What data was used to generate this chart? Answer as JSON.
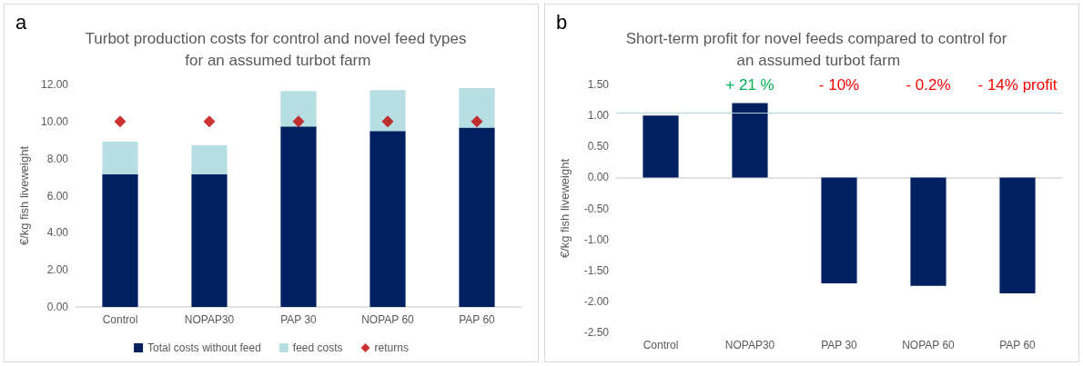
{
  "chart_data": [
    {
      "type": "bar",
      "title": "Turbot production costs for control and novel feed types for an assumed turbot farm",
      "ylabel": "€/kg fish liveweight",
      "annotations": [
        "a"
      ],
      "categories": [
        "Control",
        "NOPAP30",
        "PAP 30",
        "NOPAP 60",
        "PAP 60"
      ],
      "stacked": true,
      "series": [
        {
          "name": "Total costs without feed",
          "color": "#002060",
          "values": [
            7.16,
            7.16,
            9.73,
            9.49,
            9.67
          ]
        },
        {
          "name": "feed costs",
          "color": "#b7dee2",
          "values": [
            1.76,
            1.57,
            1.92,
            2.2,
            2.13
          ]
        },
        {
          "name": "returns",
          "type": "scatter",
          "marker": "diamond",
          "color": "#c00000",
          "values": [
            10,
            10,
            10,
            10,
            10
          ]
        }
      ],
      "ylim": [
        0,
        12
      ],
      "yticks": [
        {
          "value": 0,
          "label": "0.00"
        },
        {
          "value": 2,
          "label": "2.00"
        },
        {
          "value": 4,
          "label": "4.00"
        },
        {
          "value": 6,
          "label": "6.00"
        },
        {
          "value": 8,
          "label": "8.00"
        },
        {
          "value": 10,
          "label": "10.00"
        },
        {
          "value": 12,
          "label": "12.00"
        }
      ],
      "grid": false,
      "legend": "bottom"
    },
    {
      "type": "bar",
      "title": "Short-term profit for novel feeds compared to control for an assumed turbot farm",
      "ylabel": "€/kg fish liveweight",
      "annotations": [
        "b",
        "+ 21 %",
        "- 10%",
        "- 0.2%",
        "- 14% profit"
      ],
      "categories": [
        "Control",
        "NOPAP30",
        "PAP 30",
        "NOPAP 60",
        "PAP 60"
      ],
      "values": [
        1.0,
        1.2,
        -1.71,
        -1.75,
        -1.87
      ],
      "color": "#002060",
      "ref_lines": [
        {
          "axis": "y",
          "value": 1.04,
          "color": "#a8d8dc",
          "line_style": "solid"
        }
      ],
      "ylim": [
        -2.5,
        1.5
      ],
      "yticks": [
        {
          "value": -2.5,
          "label": "-2.50"
        },
        {
          "value": -2,
          "label": "-2.00"
        },
        {
          "value": -1.5,
          "label": "-1.50"
        },
        {
          "value": -1,
          "label": "-1.00"
        },
        {
          "value": -0.5,
          "label": "-0.50"
        },
        {
          "value": 0,
          "label": "0.00"
        },
        {
          "value": 0.5,
          "label": "0.50"
        },
        {
          "value": 1,
          "label": "1.00"
        },
        {
          "value": 1.5,
          "label": "1.50"
        }
      ],
      "grid": false,
      "legend": false
    }
  ]
}
